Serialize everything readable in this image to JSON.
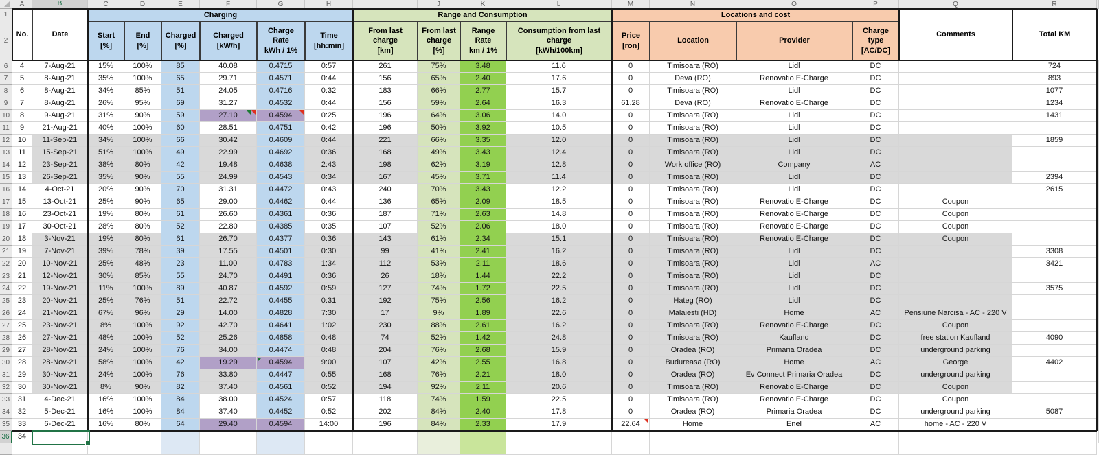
{
  "sheet": {
    "column_letters": [
      "A",
      "B",
      "C",
      "D",
      "E",
      "F",
      "G",
      "H",
      "I",
      "J",
      "K",
      "L",
      "M",
      "N",
      "O",
      "P",
      "Q",
      "R"
    ],
    "row_numbers": [
      "1",
      "2",
      "6",
      "7",
      "8",
      "9",
      "10",
      "11",
      "12",
      "13",
      "14",
      "15",
      "16",
      "17",
      "18",
      "19",
      "20",
      "21",
      "22",
      "23",
      "24",
      "25",
      "26",
      "27",
      "28",
      "29",
      "30",
      "31",
      "32",
      "33",
      "34",
      "35",
      "36"
    ],
    "group_headers": {
      "charging": "Charging",
      "range": "Range and Consumption",
      "locations": "Locations and cost"
    },
    "column_headers": {
      "no": "No.",
      "date": "Date",
      "start": "Start\n[%]",
      "end": "End\n[%]",
      "charged_pct": "Charged\n[%]",
      "charged_kwh": "Charged\n[kW/h]",
      "charge_rate": "Charge\nRate\nkWh / 1%",
      "time": "Time\n[hh:min]",
      "from_last_km": "From last\ncharge\n[km]",
      "from_last_pct": "From last\ncharge\n[%]",
      "range_rate": "Range\nRate\nkm / 1%",
      "consumption": "Consumption from last\ncharge\n[kWh/100km]",
      "price": "Price\n[ron]",
      "location": "Location",
      "provider": "Provider",
      "charge_type": "Charge\ntype\n[AC/DC]",
      "comments": "Comments",
      "total_km": "Total KM"
    },
    "rows": [
      {
        "r": 6,
        "no": "4",
        "date": "7-Aug-21",
        "start": "15%",
        "end": "100%",
        "chg": "85",
        "kwh": "40.08",
        "rate": "0.4715",
        "time": "0:57",
        "km": "261",
        "pct": "75%",
        "rr": "3.48",
        "cons": "11.6",
        "price": "0",
        "loc": "Timisoara (RO)",
        "prov": "Lidl",
        "type": "DC",
        "com": "",
        "total": "724"
      },
      {
        "r": 7,
        "no": "5",
        "date": "8-Aug-21",
        "start": "35%",
        "end": "100%",
        "chg": "65",
        "kwh": "29.71",
        "rate": "0.4571",
        "time": "0:44",
        "km": "156",
        "pct": "65%",
        "rr": "2.40",
        "cons": "17.6",
        "price": "0",
        "loc": "Deva (RO)",
        "prov": "Renovatio E-Charge",
        "type": "DC",
        "com": "",
        "total": "893"
      },
      {
        "r": 8,
        "no": "6",
        "date": "8-Aug-21",
        "start": "34%",
        "end": "85%",
        "chg": "51",
        "kwh": "24.05",
        "rate": "0.4716",
        "time": "0:32",
        "km": "183",
        "pct": "66%",
        "rr": "2.77",
        "cons": "15.7",
        "price": "0",
        "loc": "Timisoara (RO)",
        "prov": "Lidl",
        "type": "DC",
        "com": "",
        "total": "1077"
      },
      {
        "r": 9,
        "no": "7",
        "date": "8-Aug-21",
        "start": "26%",
        "end": "95%",
        "chg": "69",
        "kwh": "31.27",
        "rate": "0.4532",
        "time": "0:44",
        "km": "156",
        "pct": "59%",
        "rr": "2.64",
        "cons": "16.3",
        "price": "61.28",
        "loc": "Deva (RO)",
        "prov": "Renovatio E-Charge",
        "type": "DC",
        "com": "",
        "total": "1234"
      },
      {
        "r": 10,
        "no": "8",
        "date": "9-Aug-21",
        "start": "31%",
        "end": "90%",
        "chg": "59",
        "kwh": "27.10",
        "rate": "0.4594",
        "time": "0:25",
        "km": "196",
        "pct": "64%",
        "rr": "3.06",
        "cons": "14.0",
        "price": "0",
        "loc": "Timisoara (RO)",
        "prov": "Lidl",
        "type": "DC",
        "com": "",
        "total": "1431"
      },
      {
        "r": 11,
        "no": "9",
        "date": "21-Aug-21",
        "start": "40%",
        "end": "100%",
        "chg": "60",
        "kwh": "28.51",
        "rate": "0.4751",
        "time": "0:42",
        "km": "196",
        "pct": "50%",
        "rr": "3.92",
        "cons": "10.5",
        "price": "0",
        "loc": "Timisoara (RO)",
        "prov": "Lidl",
        "type": "DC",
        "com": "",
        "total": ""
      },
      {
        "r": 12,
        "no": "10",
        "date": "11-Sep-21",
        "start": "34%",
        "end": "100%",
        "chg": "66",
        "kwh": "30.42",
        "rate": "0.4609",
        "time": "0:44",
        "km": "221",
        "pct": "66%",
        "rr": "3.35",
        "cons": "12.0",
        "price": "0",
        "loc": "Timisoara (RO)",
        "prov": "Lidl",
        "type": "DC",
        "com": "",
        "total": "1859"
      },
      {
        "r": 13,
        "no": "11",
        "date": "15-Sep-21",
        "start": "51%",
        "end": "100%",
        "chg": "49",
        "kwh": "22.99",
        "rate": "0.4692",
        "time": "0:36",
        "km": "168",
        "pct": "49%",
        "rr": "3.43",
        "cons": "12.4",
        "price": "0",
        "loc": "Timisoara (RO)",
        "prov": "Lidl",
        "type": "DC",
        "com": "",
        "total": ""
      },
      {
        "r": 14,
        "no": "12",
        "date": "23-Sep-21",
        "start": "38%",
        "end": "80%",
        "chg": "42",
        "kwh": "19.48",
        "rate": "0.4638",
        "time": "2:43",
        "km": "198",
        "pct": "62%",
        "rr": "3.19",
        "cons": "12.8",
        "price": "0",
        "loc": "Work office (RO)",
        "prov": "Company",
        "type": "AC",
        "com": "",
        "total": ""
      },
      {
        "r": 15,
        "no": "13",
        "date": "26-Sep-21",
        "start": "35%",
        "end": "90%",
        "chg": "55",
        "kwh": "24.99",
        "rate": "0.4543",
        "time": "0:34",
        "km": "167",
        "pct": "45%",
        "rr": "3.71",
        "cons": "11.4",
        "price": "0",
        "loc": "Timisoara (RO)",
        "prov": "Lidl",
        "type": "DC",
        "com": "",
        "total": "2394"
      },
      {
        "r": 16,
        "no": "14",
        "date": "4-Oct-21",
        "start": "20%",
        "end": "90%",
        "chg": "70",
        "kwh": "31.31",
        "rate": "0.4472",
        "time": "0:43",
        "km": "240",
        "pct": "70%",
        "rr": "3.43",
        "cons": "12.2",
        "price": "0",
        "loc": "Timisoara (RO)",
        "prov": "Lidl",
        "type": "DC",
        "com": "",
        "total": "2615"
      },
      {
        "r": 17,
        "no": "15",
        "date": "13-Oct-21",
        "start": "25%",
        "end": "90%",
        "chg": "65",
        "kwh": "29.00",
        "rate": "0.4462",
        "time": "0:44",
        "km": "136",
        "pct": "65%",
        "rr": "2.09",
        "cons": "18.5",
        "price": "0",
        "loc": "Timisoara (RO)",
        "prov": "Renovatio E-Charge",
        "type": "DC",
        "com": "Coupon",
        "total": ""
      },
      {
        "r": 18,
        "no": "16",
        "date": "23-Oct-21",
        "start": "19%",
        "end": "80%",
        "chg": "61",
        "kwh": "26.60",
        "rate": "0.4361",
        "time": "0:36",
        "km": "187",
        "pct": "71%",
        "rr": "2.63",
        "cons": "14.8",
        "price": "0",
        "loc": "Timisoara (RO)",
        "prov": "Renovatio E-Charge",
        "type": "DC",
        "com": "Coupon",
        "total": ""
      },
      {
        "r": 19,
        "no": "17",
        "date": "30-Oct-21",
        "start": "28%",
        "end": "80%",
        "chg": "52",
        "kwh": "22.80",
        "rate": "0.4385",
        "time": "0:35",
        "km": "107",
        "pct": "52%",
        "rr": "2.06",
        "cons": "18.0",
        "price": "0",
        "loc": "Timisoara (RO)",
        "prov": "Renovatio E-Charge",
        "type": "DC",
        "com": "Coupon",
        "total": ""
      },
      {
        "r": 20,
        "no": "18",
        "date": "3-Nov-21",
        "start": "19%",
        "end": "80%",
        "chg": "61",
        "kwh": "26.70",
        "rate": "0.4377",
        "time": "0:36",
        "km": "143",
        "pct": "61%",
        "rr": "2.34",
        "cons": "15.1",
        "price": "0",
        "loc": "Timisoara (RO)",
        "prov": "Renovatio E-Charge",
        "type": "DC",
        "com": "Coupon",
        "total": ""
      },
      {
        "r": 21,
        "no": "19",
        "date": "7-Nov-21",
        "start": "39%",
        "end": "78%",
        "chg": "39",
        "kwh": "17.55",
        "rate": "0.4501",
        "time": "0:30",
        "km": "99",
        "pct": "41%",
        "rr": "2.41",
        "cons": "16.2",
        "price": "0",
        "loc": "Timisoara (RO)",
        "prov": "Lidl",
        "type": "DC",
        "com": "",
        "total": "3308"
      },
      {
        "r": 22,
        "no": "20",
        "date": "10-Nov-21",
        "start": "25%",
        "end": "48%",
        "chg": "23",
        "kwh": "11.00",
        "rate": "0.4783",
        "time": "1:34",
        "km": "112",
        "pct": "53%",
        "rr": "2.11",
        "cons": "18.6",
        "price": "0",
        "loc": "Timisoara (RO)",
        "prov": "Lidl",
        "type": "AC",
        "com": "",
        "total": "3421"
      },
      {
        "r": 23,
        "no": "21",
        "date": "12-Nov-21",
        "start": "30%",
        "end": "85%",
        "chg": "55",
        "kwh": "24.70",
        "rate": "0.4491",
        "time": "0:36",
        "km": "26",
        "pct": "18%",
        "rr": "1.44",
        "cons": "22.2",
        "price": "0",
        "loc": "Timisoara (RO)",
        "prov": "Lidl",
        "type": "DC",
        "com": "",
        "total": ""
      },
      {
        "r": 24,
        "no": "22",
        "date": "19-Nov-21",
        "start": "11%",
        "end": "100%",
        "chg": "89",
        "kwh": "40.87",
        "rate": "0.4592",
        "time": "0:59",
        "km": "127",
        "pct": "74%",
        "rr": "1.72",
        "cons": "22.5",
        "price": "0",
        "loc": "Timisoara (RO)",
        "prov": "Lidl",
        "type": "DC",
        "com": "",
        "total": "3575"
      },
      {
        "r": 25,
        "no": "23",
        "date": "20-Nov-21",
        "start": "25%",
        "end": "76%",
        "chg": "51",
        "kwh": "22.72",
        "rate": "0.4455",
        "time": "0:31",
        "km": "192",
        "pct": "75%",
        "rr": "2.56",
        "cons": "16.2",
        "price": "0",
        "loc": "Hateg (RO)",
        "prov": "Lidl",
        "type": "DC",
        "com": "",
        "total": ""
      },
      {
        "r": 26,
        "no": "24",
        "date": "21-Nov-21",
        "start": "67%",
        "end": "96%",
        "chg": "29",
        "kwh": "14.00",
        "rate": "0.4828",
        "time": "7:30",
        "km": "17",
        "pct": "9%",
        "rr": "1.89",
        "cons": "22.6",
        "price": "0",
        "loc": "Malaiesti (HD)",
        "prov": "Home",
        "type": "AC",
        "com": "Pensiune Narcisa - AC - 220 V",
        "total": ""
      },
      {
        "r": 27,
        "no": "25",
        "date": "23-Nov-21",
        "start": "8%",
        "end": "100%",
        "chg": "92",
        "kwh": "42.70",
        "rate": "0.4641",
        "time": "1:02",
        "km": "230",
        "pct": "88%",
        "rr": "2.61",
        "cons": "16.2",
        "price": "0",
        "loc": "Timisoara (RO)",
        "prov": "Renovatio E-Charge",
        "type": "DC",
        "com": "Coupon",
        "total": ""
      },
      {
        "r": 28,
        "no": "26",
        "date": "27-Nov-21",
        "start": "48%",
        "end": "100%",
        "chg": "52",
        "kwh": "25.26",
        "rate": "0.4858",
        "time": "0:48",
        "km": "74",
        "pct": "52%",
        "rr": "1.42",
        "cons": "24.8",
        "price": "0",
        "loc": "Timisoara (RO)",
        "prov": "Kaufland",
        "type": "DC",
        "com": "free station Kaufland",
        "total": "4090"
      },
      {
        "r": 29,
        "no": "27",
        "date": "28-Nov-21",
        "start": "24%",
        "end": "100%",
        "chg": "76",
        "kwh": "34.00",
        "rate": "0.4474",
        "time": "0:48",
        "km": "204",
        "pct": "76%",
        "rr": "2.68",
        "cons": "15.9",
        "price": "0",
        "loc": "Oradea (RO)",
        "prov": "Primaria Oradea",
        "type": "DC",
        "com": "underground parking",
        "total": ""
      },
      {
        "r": 30,
        "no": "28",
        "date": "28-Nov-21",
        "start": "58%",
        "end": "100%",
        "chg": "42",
        "kwh": "19.29",
        "rate": "0.4594",
        "time": "9:00",
        "km": "107",
        "pct": "42%",
        "rr": "2.55",
        "cons": "16.8",
        "price": "0",
        "loc": "Budureasa (RO)",
        "prov": "Home",
        "type": "AC",
        "com": "George",
        "total": "4402"
      },
      {
        "r": 31,
        "no": "29",
        "date": "30-Nov-21",
        "start": "24%",
        "end": "100%",
        "chg": "76",
        "kwh": "33.80",
        "rate": "0.4447",
        "time": "0:55",
        "km": "168",
        "pct": "76%",
        "rr": "2.21",
        "cons": "18.0",
        "price": "0",
        "loc": "Oradea (RO)",
        "prov": "Ev Connect Primaria Oradea",
        "type": "DC",
        "com": "underground parking",
        "total": ""
      },
      {
        "r": 32,
        "no": "30",
        "date": "30-Nov-21",
        "start": "8%",
        "end": "90%",
        "chg": "82",
        "kwh": "37.40",
        "rate": "0.4561",
        "time": "0:52",
        "km": "194",
        "pct": "92%",
        "rr": "2.11",
        "cons": "20.6",
        "price": "0",
        "loc": "Timisoara (RO)",
        "prov": "Renovatio E-Charge",
        "type": "DC",
        "com": "Coupon",
        "total": ""
      },
      {
        "r": 33,
        "no": "31",
        "date": "4-Dec-21",
        "start": "16%",
        "end": "100%",
        "chg": "84",
        "kwh": "38.00",
        "rate": "0.4524",
        "time": "0:57",
        "km": "118",
        "pct": "74%",
        "rr": "1.59",
        "cons": "22.5",
        "price": "0",
        "loc": "Timisoara (RO)",
        "prov": "Renovatio E-Charge",
        "type": "DC",
        "com": "Coupon",
        "total": ""
      },
      {
        "r": 34,
        "no": "32",
        "date": "5-Dec-21",
        "start": "16%",
        "end": "100%",
        "chg": "84",
        "kwh": "37.40",
        "rate": "0.4452",
        "time": "0:52",
        "km": "202",
        "pct": "84%",
        "rr": "2.40",
        "cons": "17.8",
        "price": "0",
        "loc": "Oradea (RO)",
        "prov": "Primaria Oradea",
        "type": "DC",
        "com": "underground parking",
        "total": "5087"
      },
      {
        "r": 35,
        "no": "33",
        "date": "6-Dec-21",
        "start": "16%",
        "end": "80%",
        "chg": "64",
        "kwh": "29.40",
        "rate": "0.4594",
        "time": "14:00",
        "km": "196",
        "pct": "84%",
        "rr": "2.33",
        "cons": "17.9",
        "price": "22.64",
        "loc": "Home",
        "prov": "Enel",
        "type": "AC",
        "com": "home - AC - 220 V",
        "total": ""
      },
      {
        "r": 36,
        "no": "34",
        "date": "",
        "start": "",
        "end": "",
        "chg": "",
        "kwh": "",
        "rate": "",
        "time": "",
        "km": "",
        "pct": "",
        "rr": "",
        "cons": "",
        "price": "",
        "loc": "",
        "prov": "",
        "type": "",
        "com": "",
        "total": ""
      }
    ],
    "gray_rows": [
      12,
      13,
      14,
      15,
      20,
      21,
      22,
      23,
      24,
      25,
      26,
      27,
      28,
      29,
      30,
      31,
      32
    ],
    "purple_rows": [
      10,
      30,
      35
    ],
    "cell_markers": [
      {
        "row": 10,
        "col": "F",
        "type": "green-tr"
      },
      {
        "row": 10,
        "col": "F",
        "type": "red-tr"
      },
      {
        "row": 10,
        "col": "G",
        "type": "red-tr"
      },
      {
        "row": 30,
        "col": "G",
        "type": "green-tl"
      },
      {
        "row": 35,
        "col": "M",
        "type": "red-tr"
      }
    ],
    "selected_cell": {
      "row": 36,
      "col": "B"
    },
    "colors": {
      "charging_blue": "#bdd7ee",
      "range_light_green": "#d6e4bc",
      "range_rate_green": "#92d050",
      "locations_orange": "#f8cbad",
      "gray_band": "#d9d9d9",
      "duplicate_purple": "#b1a0c7",
      "selection_green": "#217346",
      "marker_red": "#e0301e",
      "marker_green": "#1e7a34"
    }
  }
}
